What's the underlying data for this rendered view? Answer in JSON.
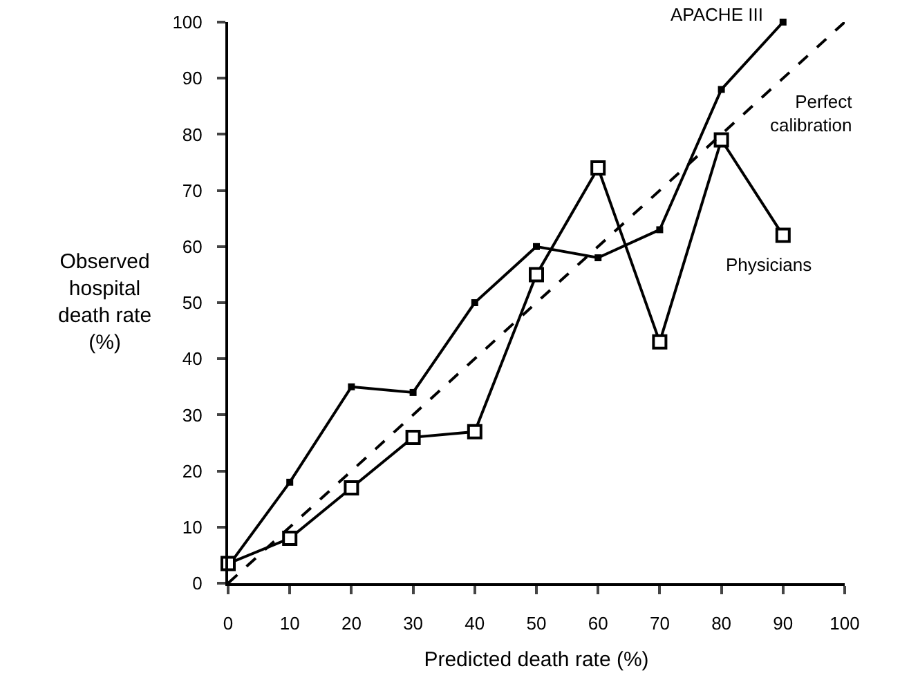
{
  "chart_data": {
    "type": "line",
    "xlabel": "Predicted death rate (%)",
    "ylabel": "Observed\nhospital\ndeath rate\n(%)",
    "x": [
      0,
      10,
      20,
      30,
      40,
      50,
      60,
      70,
      80,
      90
    ],
    "series": [
      {
        "name": "APACHE III",
        "color": "#000000",
        "marker": "square",
        "line_style": "solid",
        "values": [
          3,
          18,
          35,
          34,
          50,
          60,
          58,
          63,
          88,
          100
        ]
      },
      {
        "name": "Physicians",
        "color": "#000000",
        "marker": "square",
        "line_style": "solid",
        "values": [
          3.5,
          8,
          17,
          26,
          27,
          55,
          74,
          43,
          79,
          62
        ]
      },
      {
        "name": "Perfect calibration",
        "color": "#000000",
        "marker": "none",
        "line_style": "dashed",
        "x": [
          0,
          100
        ],
        "values": [
          0,
          100
        ]
      }
    ],
    "xlim": [
      0,
      100
    ],
    "ylim": [
      0,
      100
    ],
    "xticks": [
      0,
      10,
      20,
      30,
      40,
      50,
      60,
      70,
      80,
      90,
      100
    ],
    "yticks": [
      0,
      10,
      20,
      30,
      40,
      50,
      60,
      70,
      80,
      90,
      100
    ],
    "grid": false,
    "legend": false
  }
}
